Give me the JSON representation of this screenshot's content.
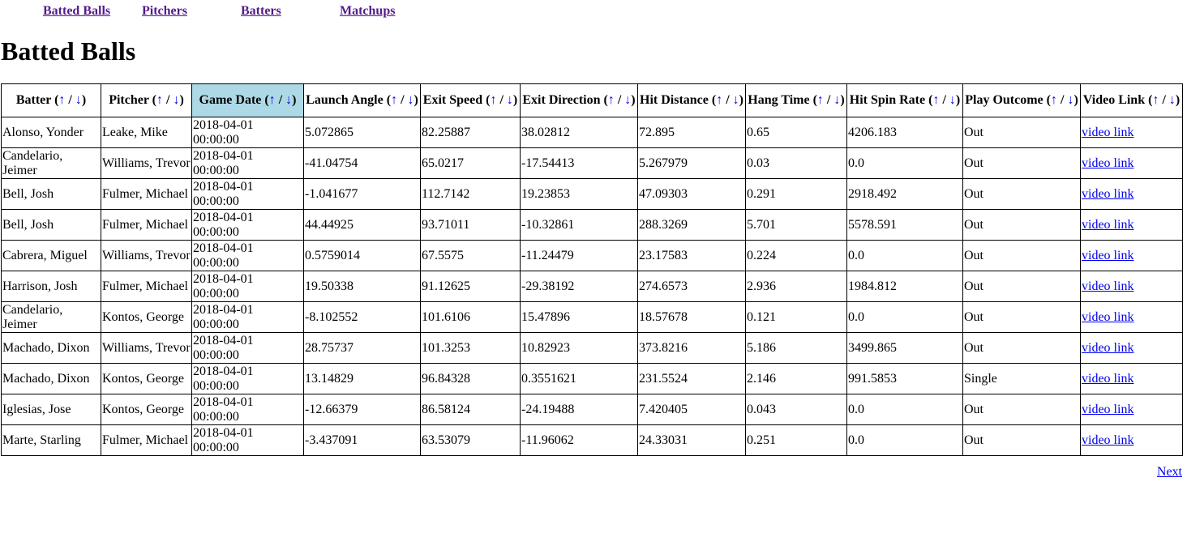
{
  "nav": [
    "Batted Balls",
    "Pitchers",
    "Batters",
    "Matchups"
  ],
  "page_title": "Batted Balls",
  "sort_arrows": {
    "up": "↑",
    "down": "↓",
    "sep": " / "
  },
  "columns": [
    "Batter",
    "Pitcher",
    "Game Date",
    "Launch Angle",
    "Exit Speed",
    "Exit Direction",
    "Hit Distance",
    "Hang Time",
    "Hit Spin Rate",
    "Play Outcome",
    "Video Link"
  ],
  "sorted_column": "Game Date",
  "rows": [
    [
      "Alonso, Yonder",
      "Leake, Mike",
      "2018-04-01 00:00:00",
      "5.072865",
      "82.25887",
      "38.02812",
      "72.895",
      "0.65",
      "4206.183",
      "Out",
      "video link"
    ],
    [
      "Candelario, Jeimer",
      "Williams, Trevor",
      "2018-04-01 00:00:00",
      "-41.04754",
      "65.0217",
      "-17.54413",
      "5.267979",
      "0.03",
      "0.0",
      "Out",
      "video link"
    ],
    [
      "Bell, Josh",
      "Fulmer, Michael",
      "2018-04-01 00:00:00",
      "-1.041677",
      "112.7142",
      "19.23853",
      "47.09303",
      "0.291",
      "2918.492",
      "Out",
      "video link"
    ],
    [
      "Bell, Josh",
      "Fulmer, Michael",
      "2018-04-01 00:00:00",
      "44.44925",
      "93.71011",
      "-10.32861",
      "288.3269",
      "5.701",
      "5578.591",
      "Out",
      "video link"
    ],
    [
      "Cabrera, Miguel",
      "Williams, Trevor",
      "2018-04-01 00:00:00",
      "0.5759014",
      "67.5575",
      "-11.24479",
      "23.17583",
      "0.224",
      "0.0",
      "Out",
      "video link"
    ],
    [
      "Harrison, Josh",
      "Fulmer, Michael",
      "2018-04-01 00:00:00",
      "19.50338",
      "91.12625",
      "-29.38192",
      "274.6573",
      "2.936",
      "1984.812",
      "Out",
      "video link"
    ],
    [
      "Candelario, Jeimer",
      "Kontos, George",
      "2018-04-01 00:00:00",
      "-8.102552",
      "101.6106",
      "15.47896",
      "18.57678",
      "0.121",
      "0.0",
      "Out",
      "video link"
    ],
    [
      "Machado, Dixon",
      "Williams, Trevor",
      "2018-04-01 00:00:00",
      "28.75737",
      "101.3253",
      "10.82923",
      "373.8216",
      "5.186",
      "3499.865",
      "Out",
      "video link"
    ],
    [
      "Machado, Dixon",
      "Kontos, George",
      "2018-04-01 00:00:00",
      "13.14829",
      "96.84328",
      "0.3551621",
      "231.5524",
      "2.146",
      "991.5853",
      "Single",
      "video link"
    ],
    [
      "Iglesias, Jose",
      "Kontos, George",
      "2018-04-01 00:00:00",
      "-12.66379",
      "86.58124",
      "-24.19488",
      "7.420405",
      "0.043",
      "0.0",
      "Out",
      "video link"
    ],
    [
      "Marte, Starling",
      "Fulmer, Michael",
      "2018-04-01 00:00:00",
      "-3.437091",
      "63.53079",
      "-11.96062",
      "24.33031",
      "0.251",
      "0.0",
      "Out",
      "video link"
    ]
  ],
  "next_label": "Next"
}
